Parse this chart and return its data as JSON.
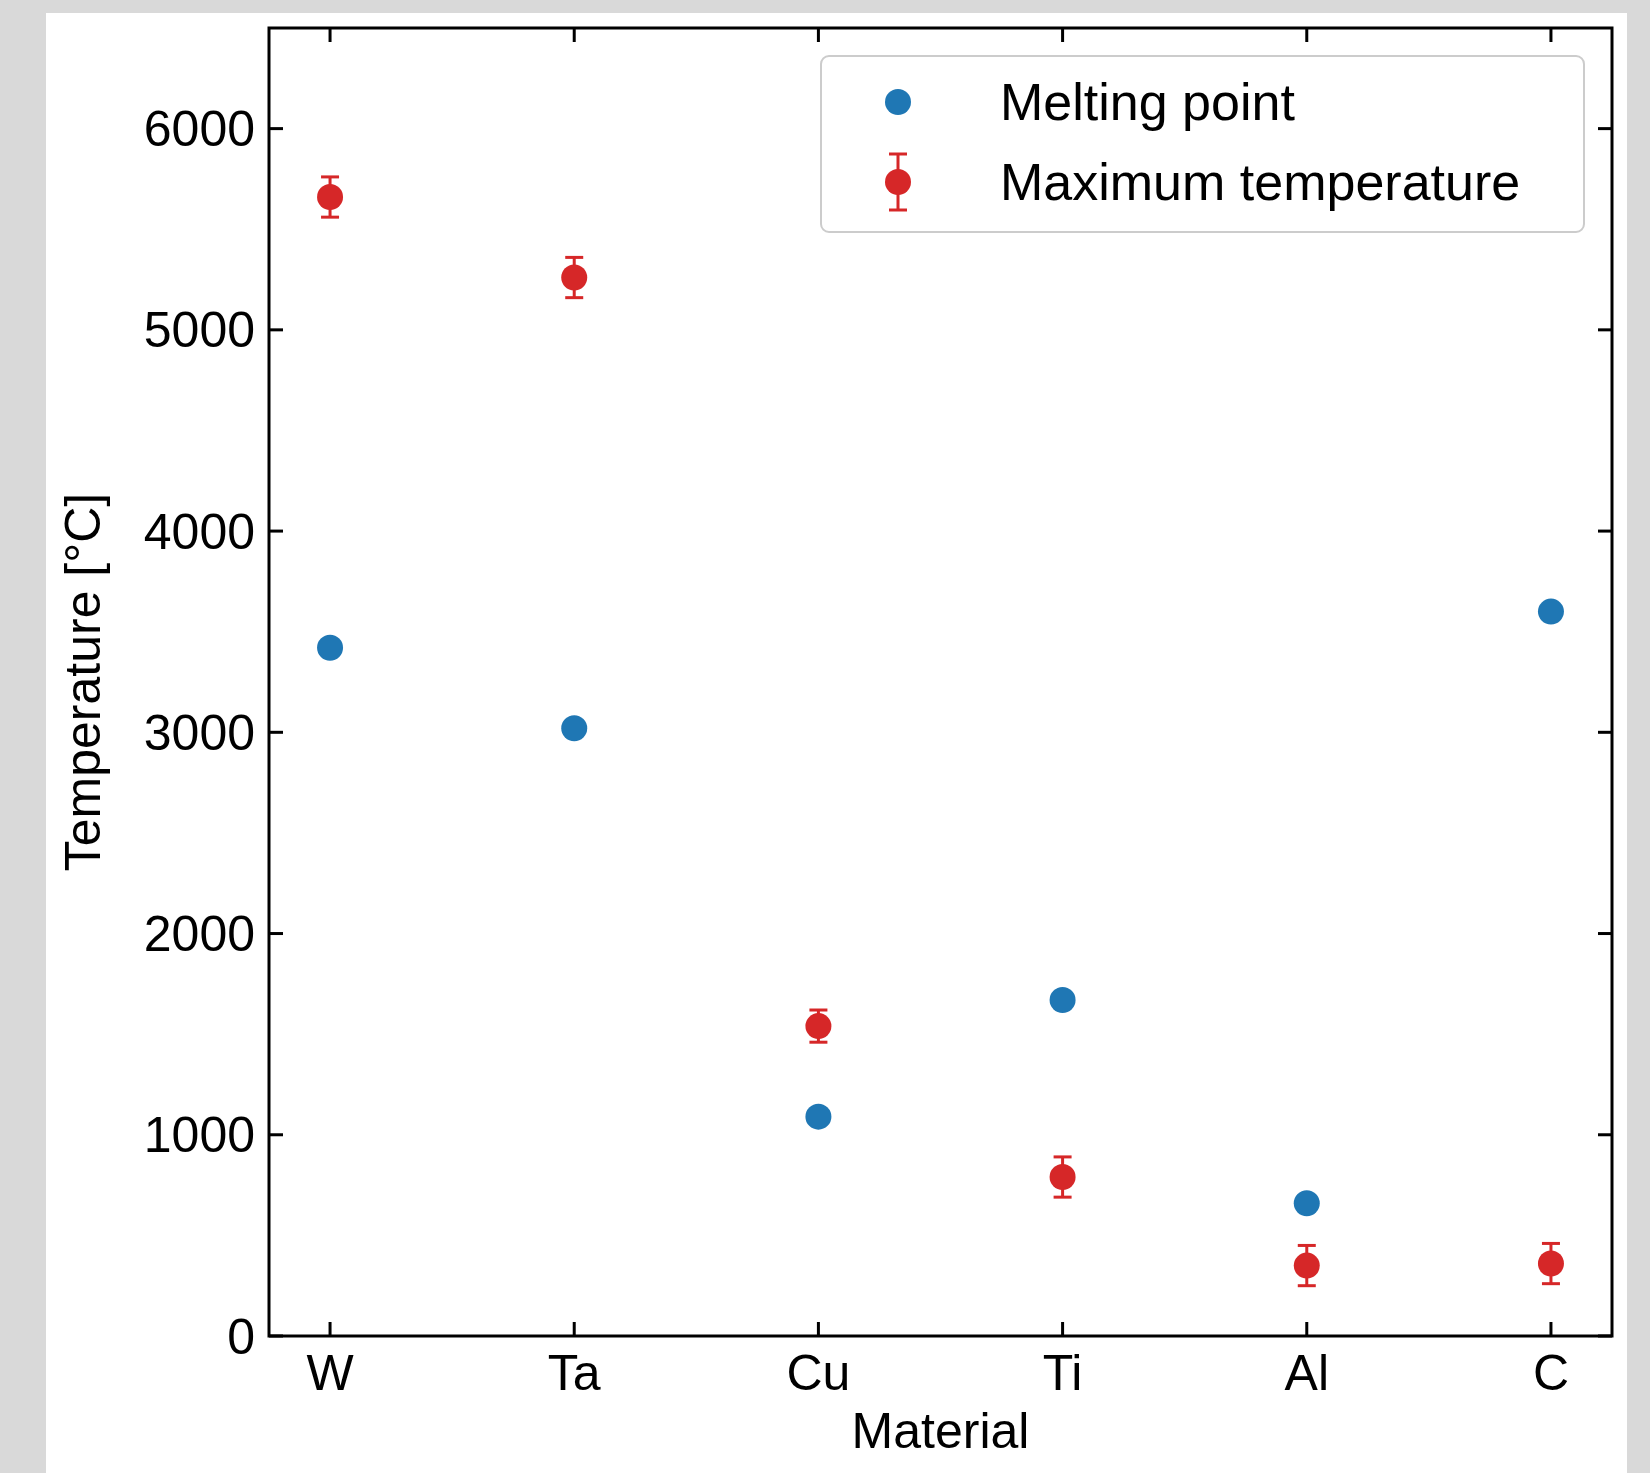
{
  "chart_data": {
    "type": "scatter",
    "xlabel": "Material",
    "ylabel": "Temperature [°C]",
    "categories": [
      "W",
      "Ta",
      "Cu",
      "Ti",
      "Al",
      "C"
    ],
    "series": [
      {
        "name": "Melting point",
        "color": "#1f77b4",
        "values": [
          3420,
          3020,
          1090,
          1670,
          660,
          3600
        ]
      },
      {
        "name": "Maximum temperature",
        "color": "#d62728",
        "values": [
          5660,
          5260,
          1540,
          790,
          350,
          360
        ],
        "errors": [
          100,
          100,
          80,
          100,
          100,
          100
        ]
      }
    ],
    "ylim": [
      0,
      6500
    ],
    "yticks": [
      0,
      1000,
      2000,
      3000,
      4000,
      5000,
      6000
    ],
    "legend": "top right",
    "marker": "circle"
  }
}
